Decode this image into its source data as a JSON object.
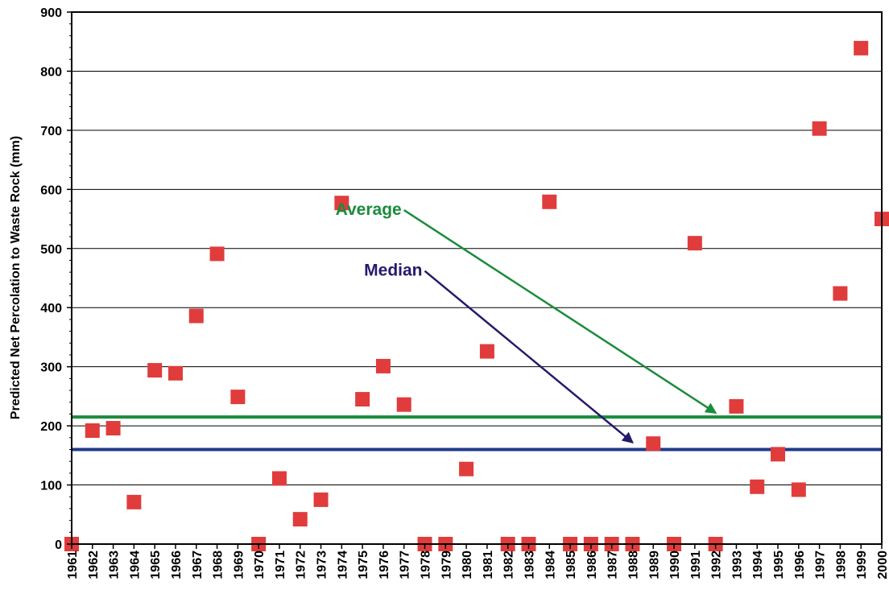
{
  "chart_data": {
    "type": "scatter",
    "title": "",
    "xlabel": "",
    "ylabel": "Predicted Net Percolation to Waste Rock (mm)",
    "ylim": [
      0,
      900
    ],
    "yticks": [
      0,
      100,
      200,
      300,
      400,
      500,
      600,
      700,
      800,
      900
    ],
    "grid": true,
    "legend": "none",
    "categories": [
      "1961",
      "1962",
      "1963",
      "1964",
      "1965",
      "1966",
      "1967",
      "1968",
      "1969",
      "1970",
      "1971",
      "1972",
      "1973",
      "1974",
      "1975",
      "1976",
      "1977",
      "1978",
      "1979",
      "1980",
      "1981",
      "1982",
      "1983",
      "1984",
      "1985",
      "1986",
      "1987",
      "1988",
      "1989",
      "1990",
      "1991",
      "1992",
      "1993",
      "1994",
      "1995",
      "1996",
      "1997",
      "1998",
      "1999",
      "2000"
    ],
    "series": [
      {
        "color": "#e03c3c",
        "marker": "square",
        "values": [
          0,
          192,
          196,
          71,
          294,
          289,
          386,
          491,
          249,
          0,
          111,
          42,
          75,
          577,
          245,
          301,
          236,
          0,
          0,
          127,
          326,
          0,
          0,
          579,
          0,
          0,
          0,
          0,
          170,
          0,
          509,
          0,
          233,
          97,
          152,
          92,
          703,
          424,
          839,
          550
        ]
      }
    ],
    "reference_lines": [
      {
        "label": "Average",
        "value": 215,
        "color": "#1a8c3c",
        "arrow_from_category": "1977",
        "arrow_from_value": 565,
        "arrow_to_category": "1992",
        "arrow_to_value": 222
      },
      {
        "label": "Median",
        "value": 160,
        "color": "#1e3a8a",
        "arrow_from_category": "1978",
        "arrow_from_value": 462,
        "arrow_to_category": "1988",
        "arrow_to_value": 172
      }
    ]
  }
}
